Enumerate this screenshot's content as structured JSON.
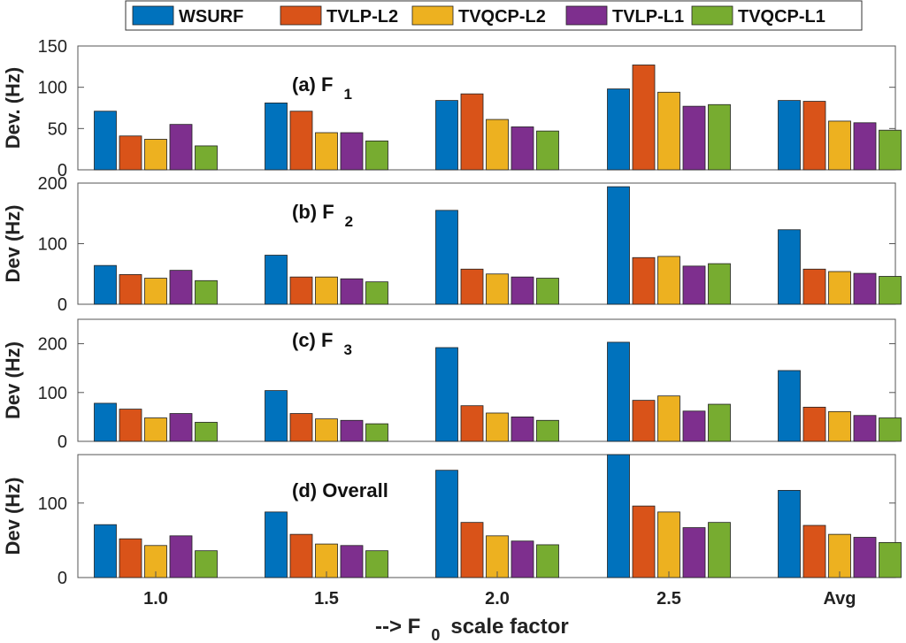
{
  "chart_data": {
    "type": "bar",
    "categories": [
      "1.0",
      "1.5",
      "2.0",
      "2.5",
      "Avg"
    ],
    "xlabel": "--> F",
    "xlabel_sub": "0",
    "xlabel_rest": "scale factor",
    "legend": {
      "placement": "top",
      "series": [
        {
          "name": "WSURF",
          "color": "#0072BD"
        },
        {
          "name": "TVLP-L2",
          "color": "#D95319"
        },
        {
          "name": "TVQCP-L2",
          "color": "#EDB120"
        },
        {
          "name": "TVLP-L1",
          "color": "#7E2F8E"
        },
        {
          "name": "TVQCP-L1",
          "color": "#77AC30"
        }
      ]
    },
    "panels": [
      {
        "title": "(a) F",
        "title_sub": "1",
        "ylabel": "Dev. (Hz)",
        "ylim": [
          0,
          150
        ],
        "yticks": [
          0,
          50,
          100,
          150
        ],
        "series": [
          {
            "name": "WSURF",
            "values": [
              71,
              81,
              84,
              98,
              84
            ]
          },
          {
            "name": "TVLP-L2",
            "values": [
              41,
              71,
              92,
              127,
              83
            ]
          },
          {
            "name": "TVQCP-L2",
            "values": [
              37,
              45,
              61,
              94,
              59
            ]
          },
          {
            "name": "TVLP-L1",
            "values": [
              55,
              45,
              52,
              77,
              57
            ]
          },
          {
            "name": "TVQCP-L1",
            "values": [
              29,
              35,
              47,
              79,
              48
            ]
          }
        ]
      },
      {
        "title": "(b) F",
        "title_sub": "2",
        "ylabel": "Dev (Hz)",
        "ylim": [
          0,
          200
        ],
        "yticks": [
          0,
          100,
          200
        ],
        "series": [
          {
            "name": "WSURF",
            "values": [
              64,
              81,
              155,
              194,
              123
            ]
          },
          {
            "name": "TVLP-L2",
            "values": [
              49,
              45,
              58,
              77,
              58
            ]
          },
          {
            "name": "TVQCP-L2",
            "values": [
              43,
              45,
              50,
              79,
              54
            ]
          },
          {
            "name": "TVLP-L1",
            "values": [
              56,
              42,
              45,
              63,
              51
            ]
          },
          {
            "name": "TVQCP-L1",
            "values": [
              39,
              37,
              43,
              67,
              46
            ]
          }
        ]
      },
      {
        "title": "(c) F",
        "title_sub": "3",
        "ylabel": "Dev (Hz)",
        "ylim": [
          0,
          250
        ],
        "yticks": [
          0,
          100,
          200
        ],
        "series": [
          {
            "name": "WSURF",
            "values": [
              78,
              104,
              192,
              203,
              145
            ]
          },
          {
            "name": "TVLP-L2",
            "values": [
              66,
              57,
              73,
              84,
              70
            ]
          },
          {
            "name": "TVQCP-L2",
            "values": [
              48,
              46,
              58,
              93,
              61
            ]
          },
          {
            "name": "TVLP-L1",
            "values": [
              57,
              43,
              50,
              62,
              53
            ]
          },
          {
            "name": "TVQCP-L1",
            "values": [
              39,
              36,
              43,
              76,
              48
            ]
          }
        ]
      },
      {
        "title": "(d) Overall",
        "title_sub": "",
        "ylabel": "Dev (Hz)",
        "ylim": [
          0,
          165
        ],
        "yticks": [
          0,
          100
        ],
        "series": [
          {
            "name": "WSURF",
            "values": [
              71,
              88,
              144,
              165,
              117
            ]
          },
          {
            "name": "TVLP-L2",
            "values": [
              52,
              58,
              74,
              96,
              70
            ]
          },
          {
            "name": "TVQCP-L2",
            "values": [
              43,
              45,
              56,
              88,
              58
            ]
          },
          {
            "name": "TVLP-L1",
            "values": [
              56,
              43,
              49,
              67,
              54
            ]
          },
          {
            "name": "TVQCP-L1",
            "values": [
              36,
              36,
              44,
              74,
              47
            ]
          }
        ]
      }
    ]
  }
}
